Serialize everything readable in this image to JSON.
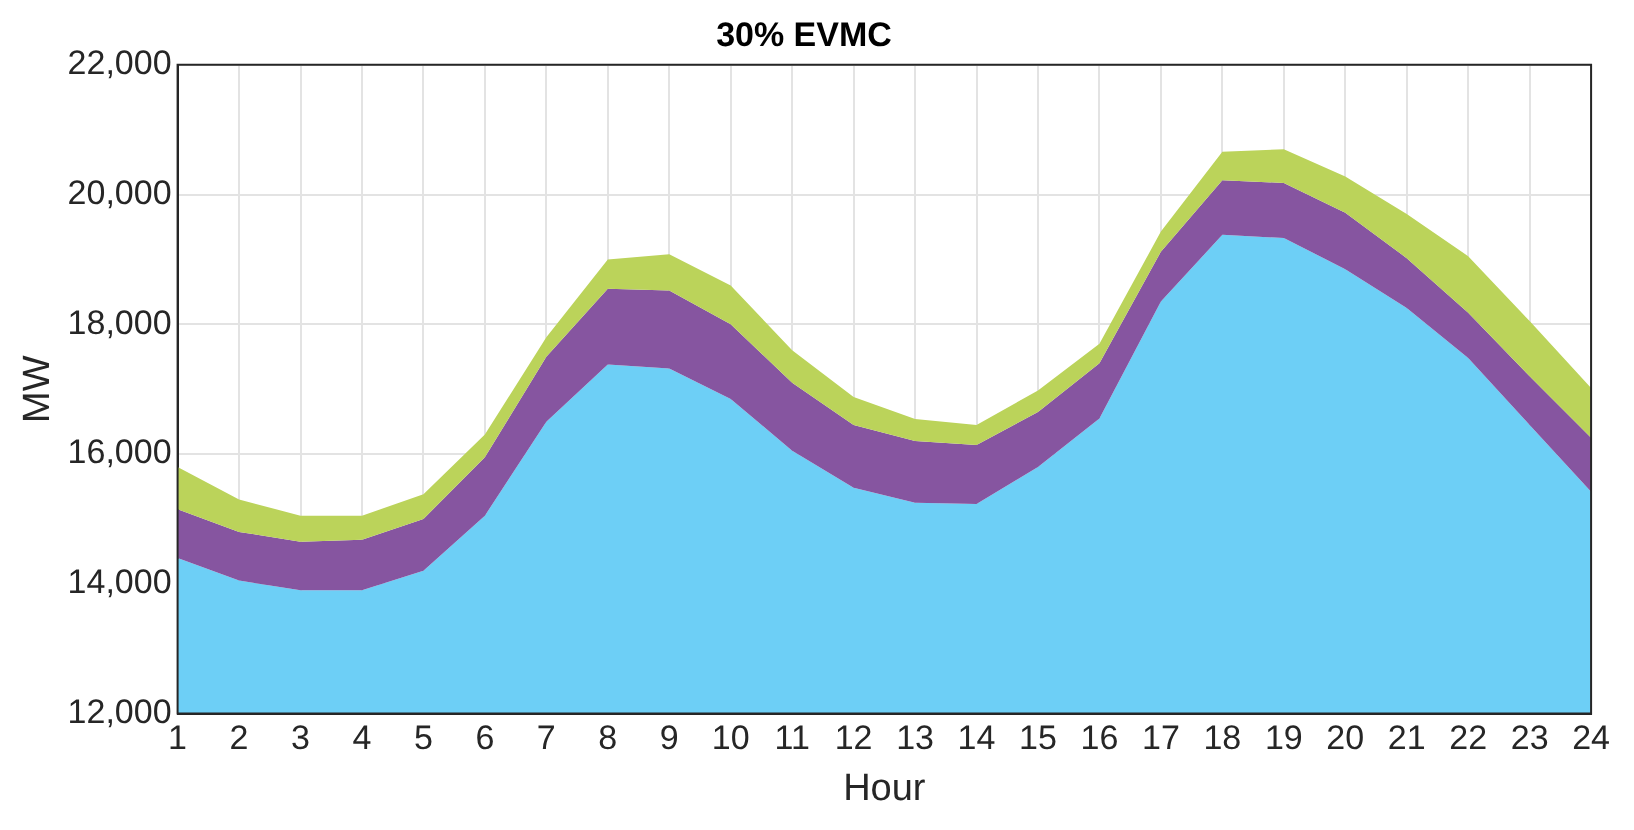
{
  "chart_data": {
    "type": "area",
    "title": "30% EVMC",
    "xlabel": "Hour",
    "ylabel": "MW",
    "x": [
      1,
      2,
      3,
      4,
      5,
      6,
      7,
      8,
      9,
      10,
      11,
      12,
      13,
      14,
      15,
      16,
      17,
      18,
      19,
      20,
      21,
      22,
      23,
      24
    ],
    "series": [
      {
        "color": "#6dcff6",
        "values": [
          14400,
          14050,
          13900,
          13900,
          14200,
          15050,
          16500,
          17380,
          17320,
          16850,
          16050,
          15480,
          15250,
          15230,
          15800,
          16550,
          18350,
          19380,
          19330,
          18850,
          18250,
          17480,
          16450,
          15420
        ]
      },
      {
        "color": "#8655a0",
        "values": [
          15150,
          14800,
          14650,
          14680,
          15000,
          15950,
          17500,
          18550,
          18520,
          18000,
          17100,
          16450,
          16200,
          16140,
          16650,
          17400,
          19120,
          20220,
          20180,
          19720,
          19020,
          18180,
          17200,
          16250
        ]
      },
      {
        "color": "#bbd35a",
        "values": [
          15800,
          15300,
          15050,
          15050,
          15380,
          16300,
          17800,
          19000,
          19080,
          18600,
          17600,
          16880,
          16540,
          16450,
          16980,
          17700,
          19430,
          20660,
          20700,
          20280,
          19700,
          19050,
          18050,
          17020
        ]
      }
    ],
    "xlim": [
      1,
      24
    ],
    "xticks": [
      1,
      2,
      3,
      4,
      5,
      6,
      7,
      8,
      9,
      10,
      11,
      12,
      13,
      14,
      15,
      16,
      17,
      18,
      19,
      20,
      21,
      22,
      23,
      24
    ],
    "ylim": [
      12000,
      22000
    ],
    "yticks": [
      {
        "value": 12000,
        "label": "12,000"
      },
      {
        "value": 14000,
        "label": "14,000"
      },
      {
        "value": 16000,
        "label": "16,000"
      },
      {
        "value": 18000,
        "label": "18,000"
      },
      {
        "value": 20000,
        "label": "20,000"
      },
      {
        "value": 22000,
        "label": "22,000"
      }
    ],
    "grid": true,
    "legend": false
  }
}
